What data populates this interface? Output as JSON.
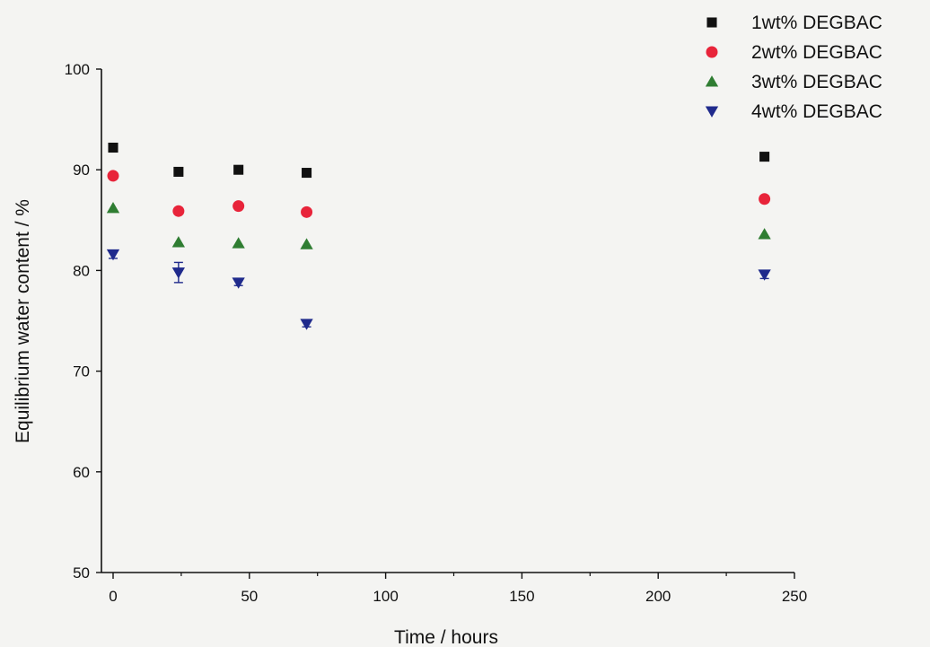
{
  "chart_data": {
    "type": "scatter",
    "title": "",
    "xlabel": "Time / hours",
    "ylabel": "Equilibrium water content / %",
    "xlim": [
      0,
      250
    ],
    "ylim": [
      50,
      100
    ],
    "xticks": [
      0,
      50,
      100,
      150,
      200,
      250
    ],
    "yticks": [
      50,
      60,
      70,
      80,
      90,
      100
    ],
    "grid": false,
    "legend": "top-right",
    "series": [
      {
        "name": "1wt% DEGBAC",
        "marker": "square",
        "color": "#111111",
        "x": [
          0,
          24,
          46,
          71,
          239
        ],
        "y": [
          92.2,
          89.8,
          90.0,
          89.7,
          91.3
        ]
      },
      {
        "name": "2wt% DEGBAC",
        "marker": "circle",
        "color": "#e8243a",
        "x": [
          0,
          24,
          46,
          71,
          239
        ],
        "y": [
          89.4,
          85.9,
          86.4,
          85.8,
          87.1
        ]
      },
      {
        "name": "3wt% DEGBAC",
        "marker": "triangle-up",
        "color": "#2f7d32",
        "x": [
          0,
          24,
          46,
          71,
          239
        ],
        "y": [
          86.2,
          82.8,
          82.7,
          82.6,
          83.6
        ]
      },
      {
        "name": "4wt% DEGBAC",
        "marker": "triangle-down",
        "color": "#1f2a8c",
        "x": [
          0,
          24,
          46,
          71,
          239
        ],
        "y": [
          81.6,
          79.8,
          78.8,
          74.7,
          79.6
        ],
        "error": [
          0.4,
          1.0,
          0.3,
          0.3,
          0.4
        ]
      }
    ]
  }
}
